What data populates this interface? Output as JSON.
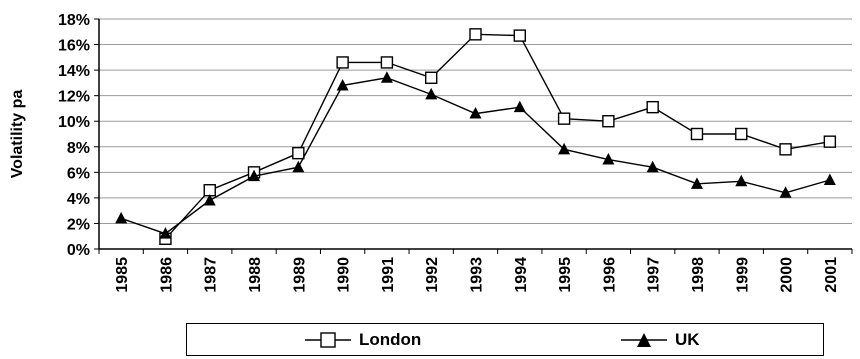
{
  "chart_data": {
    "type": "line",
    "title": "",
    "xlabel": "",
    "ylabel": "Volatility pa",
    "categories": [
      "1985",
      "1986",
      "1987",
      "1988",
      "1989",
      "1990",
      "1991",
      "1992",
      "1993",
      "1994",
      "1995",
      "1996",
      "1997",
      "1998",
      "1999",
      "2000",
      "2001"
    ],
    "ylim": [
      0,
      18
    ],
    "yticks": [
      "0%",
      "2%",
      "4%",
      "6%",
      "8%",
      "10%",
      "12%",
      "14%",
      "16%",
      "18%"
    ],
    "grid": true,
    "legend_position": "bottom",
    "series": [
      {
        "name": "London",
        "marker": "open-square",
        "color": "#000000",
        "values": [
          null,
          0.8,
          4.6,
          6.0,
          7.5,
          14.6,
          14.6,
          13.4,
          16.8,
          16.7,
          10.2,
          10.0,
          11.1,
          9.0,
          9.0,
          7.8,
          8.4
        ]
      },
      {
        "name": "UK",
        "marker": "filled-triangle",
        "color": "#000000",
        "values": [
          2.4,
          1.2,
          3.8,
          5.7,
          6.4,
          12.8,
          13.4,
          12.1,
          10.6,
          11.1,
          7.8,
          7.0,
          6.4,
          5.1,
          5.3,
          4.4,
          5.4
        ]
      }
    ]
  }
}
